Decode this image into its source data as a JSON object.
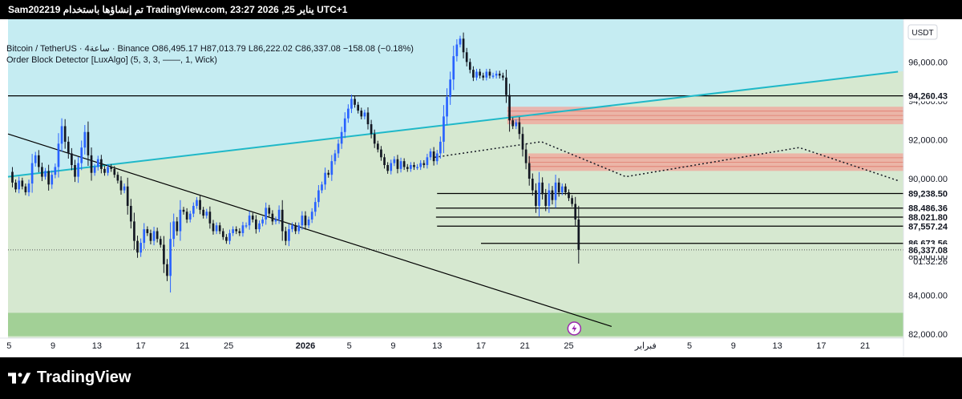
{
  "header": {
    "title": "Sam202219 تم إنشاؤها باستخدام TradingView.com, يناير 25, 2026 23:27 UTC+1"
  },
  "legend": {
    "line1": "Bitcoin / TetherUS · 4ساعة · Binance O86,495.17 H87,013.79 L86,222.02 C86,337.08 −158.08 (−0.18%)",
    "line2": "Order Block Detector [LuxAlgo] (5, 3, 3, ——, 1, Wick)"
  },
  "price_scale": {
    "currency": "USDT"
  },
  "brand": {
    "name": "TradingView"
  },
  "colors": {
    "up": "#2962ff",
    "down": "#131722",
    "bg_cyan": "#c5ecf2",
    "bg_green": "#d6e8d0",
    "demand_zone": "#9ccd8f",
    "supply_zone": "#f2a49a",
    "trendline_cyan": "#1fb8c8"
  },
  "chart_data": {
    "type": "candlestick",
    "symbol": "Bitcoin / TetherUS",
    "interval": "4ساعة",
    "exchange": "Binance",
    "ohlc": {
      "open": 86495.17,
      "high": 87013.79,
      "low": 86222.02,
      "close": 86337.08,
      "change": -158.08,
      "change_pct": -0.18
    },
    "y_ticks": [
      82000,
      84000,
      86000,
      88000,
      90000,
      92000,
      94000,
      96000
    ],
    "y_tick_labels": [
      "82,000.00",
      "84,000.00",
      "86,000.00",
      "88,000.00",
      "90,000.00",
      "92,000.00",
      "94,000.00",
      "96,000.00"
    ],
    "ylim": [
      81800,
      98200
    ],
    "x_ticks": [
      {
        "day": 5,
        "label": "5"
      },
      {
        "day": 9,
        "label": "9"
      },
      {
        "day": 13,
        "label": "13"
      },
      {
        "day": 17,
        "label": "17"
      },
      {
        "day": 21,
        "label": "21"
      },
      {
        "day": 25,
        "label": "25"
      },
      {
        "day": 32,
        "label": "2026"
      },
      {
        "day": 36,
        "label": "5"
      },
      {
        "day": 40,
        "label": "9"
      },
      {
        "day": 44,
        "label": "13"
      },
      {
        "day": 48,
        "label": "17"
      },
      {
        "day": 52,
        "label": "21"
      },
      {
        "day": 56,
        "label": "25"
      },
      {
        "day": 63,
        "label": "فبراير"
      },
      {
        "day": 67,
        "label": "5"
      },
      {
        "day": 71,
        "label": "9"
      },
      {
        "day": 75,
        "label": "13"
      },
      {
        "day": 79,
        "label": "17"
      },
      {
        "day": 83,
        "label": "21"
      }
    ],
    "xlim": [
      4.9,
      86.5
    ],
    "price_labels": [
      {
        "price": 94260.43,
        "text": "94,260.43"
      },
      {
        "price": 89238.5,
        "text": "89,238.50"
      },
      {
        "price": 88486.36,
        "text": "88,486.36"
      },
      {
        "price": 88021.8,
        "text": "88,021.80"
      },
      {
        "price": 87557.24,
        "text": "87,557.24"
      },
      {
        "price": 86673.56,
        "text": "86,673.56"
      },
      {
        "price": 86337.08,
        "text": "86,337.08"
      }
    ],
    "countdown": "01:32:26",
    "close_series": [
      [
        5.0,
        90350
      ],
      [
        5.3,
        89800
      ],
      [
        5.6,
        89450
      ],
      [
        5.9,
        89900
      ],
      [
        6.2,
        89600
      ],
      [
        6.5,
        89300
      ],
      [
        6.8,
        89750
      ],
      [
        7.1,
        90800
      ],
      [
        7.4,
        91200
      ],
      [
        7.7,
        90600
      ],
      [
        8.0,
        90100
      ],
      [
        8.3,
        90400
      ],
      [
        8.6,
        89700
      ],
      [
        8.9,
        90200
      ],
      [
        9.2,
        90600
      ],
      [
        9.5,
        91800
      ],
      [
        9.8,
        92700
      ],
      [
        10.1,
        91900
      ],
      [
        10.4,
        91300
      ],
      [
        10.7,
        90700
      ],
      [
        11.0,
        90100
      ],
      [
        11.3,
        90800
      ],
      [
        11.6,
        91600
      ],
      [
        11.9,
        92400
      ],
      [
        12.2,
        91200
      ],
      [
        12.5,
        90300
      ],
      [
        12.8,
        90600
      ],
      [
        13.1,
        91000
      ],
      [
        13.4,
        90500
      ],
      [
        13.7,
        90300
      ],
      [
        14.0,
        90600
      ],
      [
        14.3,
        90500
      ],
      [
        14.6,
        90200
      ],
      [
        14.9,
        89900
      ],
      [
        15.2,
        89400
      ],
      [
        15.5,
        89600
      ],
      [
        15.8,
        88600
      ],
      [
        16.1,
        87800
      ],
      [
        16.4,
        86800
      ],
      [
        16.7,
        86200
      ],
      [
        17.0,
        86700
      ],
      [
        17.3,
        87400
      ],
      [
        17.6,
        87200
      ],
      [
        17.9,
        86800
      ],
      [
        18.2,
        87300
      ],
      [
        18.5,
        86900
      ],
      [
        18.8,
        86600
      ],
      [
        19.1,
        85600
      ],
      [
        19.4,
        85000
      ],
      [
        19.7,
        86900
      ],
      [
        20.0,
        87800
      ],
      [
        20.3,
        87300
      ],
      [
        20.6,
        88400
      ],
      [
        20.9,
        88300
      ],
      [
        21.2,
        87900
      ],
      [
        21.5,
        88200
      ],
      [
        21.8,
        88600
      ],
      [
        22.1,
        88900
      ],
      [
        22.4,
        88400
      ],
      [
        22.7,
        88100
      ],
      [
        23.0,
        88300
      ],
      [
        23.3,
        87700
      ],
      [
        23.6,
        87300
      ],
      [
        23.9,
        87600
      ],
      [
        24.2,
        87300
      ],
      [
        24.5,
        87000
      ],
      [
        24.8,
        86800
      ],
      [
        25.1,
        87200
      ],
      [
        25.4,
        87400
      ],
      [
        25.7,
        87300
      ],
      [
        26.0,
        87200
      ],
      [
        26.3,
        87600
      ],
      [
        26.6,
        87600
      ],
      [
        26.9,
        88100
      ],
      [
        27.2,
        87900
      ],
      [
        27.5,
        87400
      ],
      [
        27.8,
        87700
      ],
      [
        28.1,
        87900
      ],
      [
        28.4,
        88500
      ],
      [
        28.7,
        88200
      ],
      [
        29.0,
        87800
      ],
      [
        29.3,
        87900
      ],
      [
        29.6,
        88400
      ],
      [
        29.9,
        87300
      ],
      [
        30.2,
        86800
      ],
      [
        30.5,
        87400
      ],
      [
        30.8,
        87600
      ],
      [
        31.1,
        87300
      ],
      [
        31.4,
        87600
      ],
      [
        31.7,
        88100
      ],
      [
        32.0,
        87600
      ],
      [
        32.3,
        87900
      ],
      [
        32.6,
        88300
      ],
      [
        32.9,
        88800
      ],
      [
        33.2,
        89400
      ],
      [
        33.5,
        89700
      ],
      [
        33.8,
        90300
      ],
      [
        34.1,
        90200
      ],
      [
        34.4,
        90900
      ],
      [
        34.7,
        91300
      ],
      [
        35.0,
        91800
      ],
      [
        35.3,
        92400
      ],
      [
        35.6,
        93100
      ],
      [
        35.9,
        93600
      ],
      [
        36.2,
        94100
      ],
      [
        36.5,
        93800
      ],
      [
        36.8,
        93500
      ],
      [
        37.1,
        93200
      ],
      [
        37.4,
        93400
      ],
      [
        37.7,
        92800
      ],
      [
        38.0,
        92300
      ],
      [
        38.3,
        91800
      ],
      [
        38.6,
        91500
      ],
      [
        38.9,
        91100
      ],
      [
        39.2,
        90700
      ],
      [
        39.5,
        90400
      ],
      [
        39.8,
        90800
      ],
      [
        40.1,
        91000
      ],
      [
        40.4,
        90500
      ],
      [
        40.7,
        90900
      ],
      [
        41.0,
        90600
      ],
      [
        41.3,
        90500
      ],
      [
        41.6,
        90700
      ],
      [
        41.9,
        90600
      ],
      [
        42.2,
        90600
      ],
      [
        42.5,
        90800
      ],
      [
        42.8,
        90700
      ],
      [
        43.1,
        91100
      ],
      [
        43.4,
        91400
      ],
      [
        43.7,
        90900
      ],
      [
        44.0,
        91300
      ],
      [
        44.3,
        91900
      ],
      [
        44.6,
        93200
      ],
      [
        44.9,
        94200
      ],
      [
        45.2,
        95100
      ],
      [
        45.5,
        96300
      ],
      [
        45.8,
        96900
      ],
      [
        46.1,
        97200
      ],
      [
        46.4,
        96500
      ],
      [
        46.7,
        96000
      ],
      [
        47.0,
        95600
      ],
      [
        47.3,
        95200
      ],
      [
        47.6,
        95500
      ],
      [
        47.9,
        95300
      ],
      [
        48.2,
        95200
      ],
      [
        48.5,
        95500
      ],
      [
        48.8,
        95300
      ],
      [
        49.1,
        95300
      ],
      [
        49.4,
        95400
      ],
      [
        49.7,
        95300
      ],
      [
        50.0,
        95200
      ],
      [
        50.3,
        94300
      ],
      [
        50.6,
        93000
      ],
      [
        50.9,
        92700
      ],
      [
        51.2,
        92900
      ],
      [
        51.5,
        92300
      ],
      [
        51.8,
        91500
      ],
      [
        52.1,
        90800
      ],
      [
        52.4,
        90000
      ],
      [
        52.7,
        89400
      ],
      [
        53.0,
        88600
      ],
      [
        53.3,
        89800
      ],
      [
        53.6,
        89200
      ],
      [
        53.9,
        88600
      ],
      [
        54.2,
        89400
      ],
      [
        54.5,
        88900
      ],
      [
        54.8,
        89800
      ],
      [
        55.1,
        89300
      ],
      [
        55.4,
        89600
      ],
      [
        55.7,
        89300
      ],
      [
        56.0,
        89000
      ],
      [
        56.3,
        88700
      ],
      [
        56.6,
        87900
      ],
      [
        56.9,
        86337
      ]
    ],
    "order_blocks": [
      {
        "type": "supply",
        "low": 92800,
        "high": 93700,
        "from_day": 50.4
      },
      {
        "type": "supply",
        "low": 90400,
        "high": 91300,
        "from_day": 52.3
      },
      {
        "type": "demand",
        "low": 81900,
        "high": 83100,
        "from_day": 4.9
      }
    ],
    "horizontal_levels": [
      {
        "price": 94260.43,
        "from_day": 4.9
      },
      {
        "price": 89238.5,
        "from_day": 44.0
      },
      {
        "price": 88486.36,
        "from_day": 43.9
      },
      {
        "price": 88021.8,
        "from_day": 43.9
      },
      {
        "price": 87557.24,
        "from_day": 44.0
      },
      {
        "price": 86673.56,
        "from_day": 48.0
      }
    ],
    "trendlines": [
      {
        "style": "cyan",
        "points": [
          [
            4.9,
            90100
          ],
          [
            86.0,
            95500
          ]
        ]
      },
      {
        "style": "black",
        "points": [
          [
            4.9,
            92300
          ],
          [
            59.9,
            82400
          ]
        ]
      },
      {
        "style": "dotted",
        "points": [
          [
            43.8,
            91100
          ],
          [
            53.5,
            91900
          ],
          [
            61.2,
            90100
          ],
          [
            77.0,
            91600
          ],
          [
            86.0,
            89900
          ]
        ]
      }
    ],
    "background_zones": [
      {
        "type": "cyan",
        "pivot_day": 4.9,
        "pivot_price": 90100,
        "end_day": 86.0,
        "end_price": 95500
      },
      {
        "type": "green"
      }
    ]
  }
}
